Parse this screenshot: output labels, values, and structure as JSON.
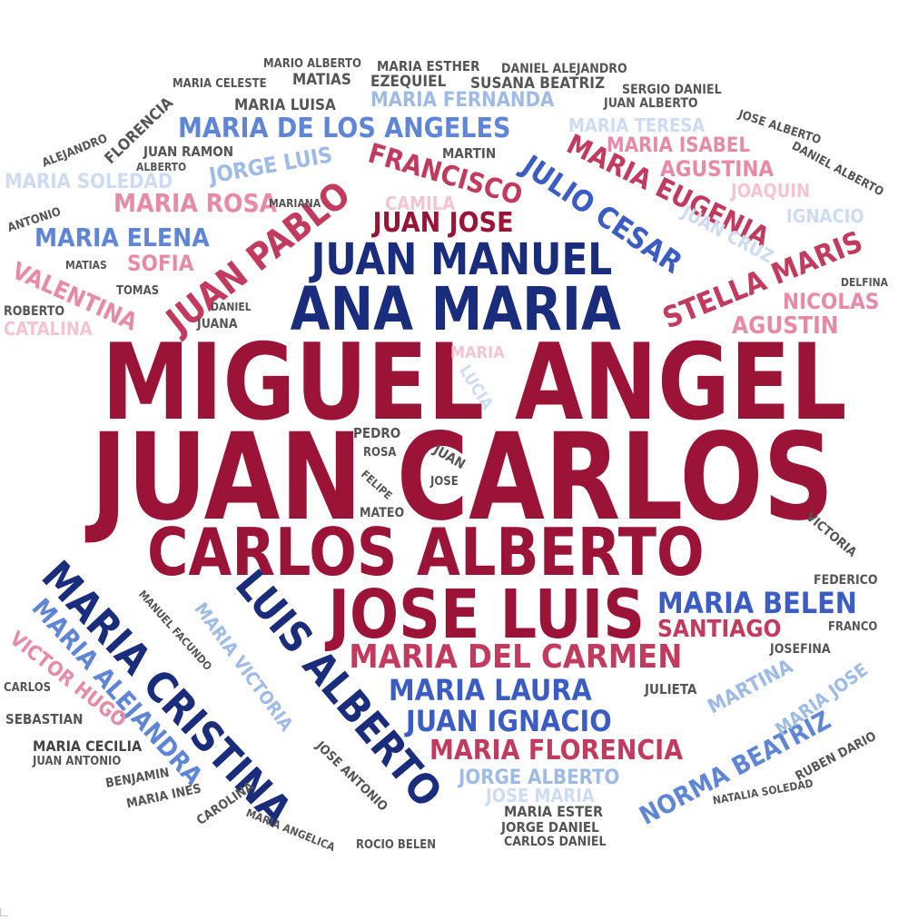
{
  "colors": {
    "crimson": "#9b1438",
    "rose": "#c23a5e",
    "pink": "#e88aa6",
    "pale_pink": "#f5c4d2",
    "navy": "#1a2d7c",
    "royal": "#3a5cc4",
    "cornflower": "#5f86d6",
    "sky": "#9dbbe6",
    "pale_blue": "#cddcf3",
    "grey": "#555555",
    "dark_grey": "#444444"
  },
  "words": [
    {
      "text": "MIGUEL ANGEL",
      "color": "crimson"
    },
    {
      "text": "JUAN CARLOS",
      "color": "crimson"
    },
    {
      "text": "CARLOS ALBERTO",
      "color": "crimson"
    },
    {
      "text": "JOSE LUIS",
      "color": "crimson"
    },
    {
      "text": "ANA MARIA",
      "color": "navy"
    },
    {
      "text": "JUAN MANUEL",
      "color": "navy"
    },
    {
      "text": "MARIA CRISTINA",
      "color": "navy"
    },
    {
      "text": "LUIS ALBERTO",
      "color": "navy"
    },
    {
      "text": "MARIA DEL CARMEN",
      "color": "rose"
    },
    {
      "text": "JUAN PABLO",
      "color": "rose"
    },
    {
      "text": "JULIO CESAR",
      "color": "royal"
    },
    {
      "text": "STELLA MARIS",
      "color": "rose"
    },
    {
      "text": "MARIA EUGENIA",
      "color": "rose"
    },
    {
      "text": "FRANCISCO",
      "color": "rose"
    },
    {
      "text": "JUAN JOSE",
      "color": "crimson"
    },
    {
      "text": "MARIA DE LOS ANGELES",
      "color": "cornflower"
    },
    {
      "text": "MARIA BELEN",
      "color": "royal"
    },
    {
      "text": "SANTIAGO",
      "color": "rose"
    },
    {
      "text": "MARIA LAURA",
      "color": "royal"
    },
    {
      "text": "JUAN IGNACIO",
      "color": "royal"
    },
    {
      "text": "MARIA FLORENCIA",
      "color": "rose"
    },
    {
      "text": "MARIA ALEJANDRA",
      "color": "cornflower"
    },
    {
      "text": "NORMA BEATRIZ",
      "color": "cornflower"
    },
    {
      "text": "MARIA ELENA",
      "color": "cornflower"
    },
    {
      "text": "MARIA ROSA",
      "color": "pink"
    },
    {
      "text": "JORGE LUIS",
      "color": "sky"
    },
    {
      "text": "MARIA SOLEDAD",
      "color": "pale_blue"
    },
    {
      "text": "VALENTINA",
      "color": "pink"
    },
    {
      "text": "SOFIA",
      "color": "pink"
    },
    {
      "text": "MARIA FERNANDA",
      "color": "sky"
    },
    {
      "text": "MARIA ISABEL",
      "color": "pink"
    },
    {
      "text": "AGUSTINA",
      "color": "pink"
    },
    {
      "text": "JOAQUIN",
      "color": "pale_pink"
    },
    {
      "text": "IGNACIO",
      "color": "pale_blue"
    },
    {
      "text": "JUAN CRUZ",
      "color": "pale_blue"
    },
    {
      "text": "NICOLAS",
      "color": "pink"
    },
    {
      "text": "AGUSTIN",
      "color": "pink"
    },
    {
      "text": "MARIA TERESA",
      "color": "pale_blue"
    },
    {
      "text": "CAMILA",
      "color": "pale_pink"
    },
    {
      "text": "CATALINA",
      "color": "pale_pink"
    },
    {
      "text": "VICTOR HUGO",
      "color": "pink"
    },
    {
      "text": "MARIA VICTORIA",
      "color": "sky"
    },
    {
      "text": "JORGE ALBERTO",
      "color": "sky"
    },
    {
      "text": "JOSE MARIA",
      "color": "pale_blue"
    },
    {
      "text": "MARTINA",
      "color": "sky"
    },
    {
      "text": "MARIA JOSE",
      "color": "sky"
    },
    {
      "text": "MARIA",
      "color": "pale_pink"
    },
    {
      "text": "LUCIA",
      "color": "pale_blue"
    },
    {
      "text": "FLORENCIA",
      "color": "grey"
    },
    {
      "text": "MARIA LUISA",
      "color": "grey"
    },
    {
      "text": "MATIAS",
      "color": "grey"
    },
    {
      "text": "EZEQUIEL",
      "color": "grey"
    },
    {
      "text": "SUSANA BEATRIZ",
      "color": "grey"
    },
    {
      "text": "MARIO ALBERTO",
      "color": "grey"
    },
    {
      "text": "MARIA ESTHER",
      "color": "grey"
    },
    {
      "text": "DANIEL ALEJANDRO",
      "color": "grey"
    },
    {
      "text": "MARIA CELESTE",
      "color": "grey"
    },
    {
      "text": "SERGIO DANIEL",
      "color": "grey"
    },
    {
      "text": "JUAN ALBERTO",
      "color": "grey"
    },
    {
      "text": "JOSE ALBERTO",
      "color": "grey"
    },
    {
      "text": "DANIEL ALBERTO",
      "color": "grey"
    },
    {
      "text": "ALEJANDRO",
      "color": "grey"
    },
    {
      "text": "JUAN RAMON",
      "color": "grey"
    },
    {
      "text": "ALBERTO",
      "color": "grey"
    },
    {
      "text": "MARTIN",
      "color": "grey"
    },
    {
      "text": "MARIANA",
      "color": "grey"
    },
    {
      "text": "ANTONIO",
      "color": "grey"
    },
    {
      "text": "MATIAS",
      "color": "grey"
    },
    {
      "text": "TOMAS",
      "color": "grey"
    },
    {
      "text": "ROBERTO",
      "color": "grey"
    },
    {
      "text": "DANIEL",
      "color": "grey"
    },
    {
      "text": "JUANA",
      "color": "grey"
    },
    {
      "text": "DELFINA",
      "color": "grey"
    },
    {
      "text": "PEDRO",
      "color": "grey"
    },
    {
      "text": "ROSA",
      "color": "grey"
    },
    {
      "text": "JUAN",
      "color": "grey"
    },
    {
      "text": "JOSE",
      "color": "grey"
    },
    {
      "text": "FELIPE",
      "color": "grey"
    },
    {
      "text": "MATEO",
      "color": "grey"
    },
    {
      "text": "VICTORIA",
      "color": "grey"
    },
    {
      "text": "FEDERICO",
      "color": "grey"
    },
    {
      "text": "FRANCO",
      "color": "grey"
    },
    {
      "text": "JOSEFINA",
      "color": "grey"
    },
    {
      "text": "JULIETA",
      "color": "grey"
    },
    {
      "text": "MANUEL FACUNDO",
      "color": "grey"
    },
    {
      "text": "CARLOS",
      "color": "grey"
    },
    {
      "text": "SEBASTIAN",
      "color": "grey"
    },
    {
      "text": "MARIA CECILIA",
      "color": "dark_grey"
    },
    {
      "text": "JUAN ANTONIO",
      "color": "grey"
    },
    {
      "text": "BENJAMIN",
      "color": "grey"
    },
    {
      "text": "MARIA INES",
      "color": "grey"
    },
    {
      "text": "CAROLINA",
      "color": "grey"
    },
    {
      "text": "MARIA ANGELICA",
      "color": "grey"
    },
    {
      "text": "JOSE ANTONIO",
      "color": "grey"
    },
    {
      "text": "ROCIO BELEN",
      "color": "grey"
    },
    {
      "text": "MARIA ESTER",
      "color": "grey"
    },
    {
      "text": "JORGE DANIEL",
      "color": "grey"
    },
    {
      "text": "CARLOS DANIEL",
      "color": "grey"
    },
    {
      "text": "RUBEN DARIO",
      "color": "grey"
    },
    {
      "text": "NATALIA SOLEDAD",
      "color": "grey"
    }
  ]
}
